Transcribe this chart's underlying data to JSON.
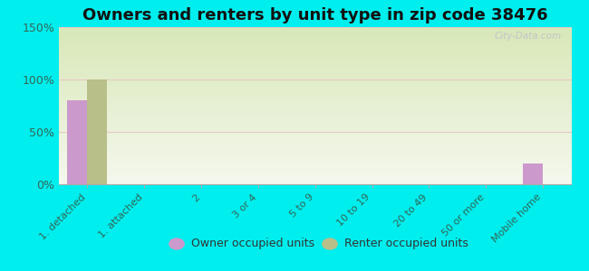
{
  "title": "Owners and renters by unit type in zip code 38476",
  "categories": [
    "1. detached",
    "1. attached",
    "2",
    "3 or 4",
    "5 to 9",
    "10 to 19",
    "20 to 49",
    "50 or more",
    "Mobile home"
  ],
  "owner_values": [
    80,
    0,
    0,
    0,
    0,
    0,
    0,
    0,
    20
  ],
  "renter_values": [
    100,
    0,
    0,
    0,
    0,
    0,
    0,
    0,
    0
  ],
  "owner_color": "#cc99cc",
  "renter_color": "#b8bf88",
  "ylim": [
    0,
    150
  ],
  "yticks": [
    0,
    50,
    100,
    150
  ],
  "ytick_labels": [
    "0%",
    "50%",
    "100%",
    "150%"
  ],
  "background_color": "#00eeee",
  "plot_bg_color_topleft": "#d8e8b8",
  "plot_bg_color_bottomright": "#f5f8ee",
  "bar_width": 0.35,
  "title_fontsize": 13,
  "tick_label_color": "#336655",
  "axis_label_fontsize": 8,
  "watermark": "City-Data.com",
  "grid_color": "#ddddcc",
  "legend_label_owner": "Owner occupied units",
  "legend_label_renter": "Renter occupied units"
}
